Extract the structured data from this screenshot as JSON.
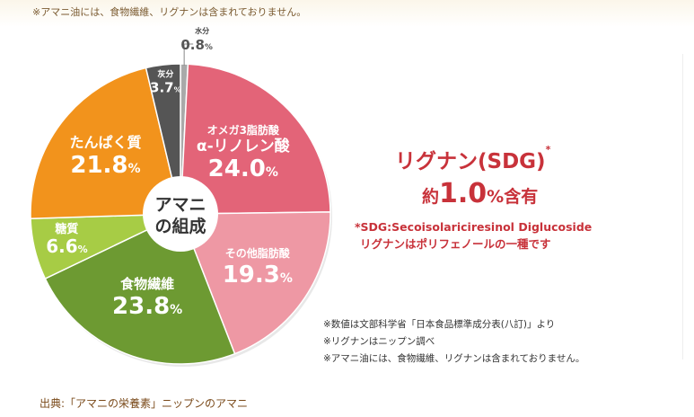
{
  "header": {
    "top_note": "※アマニ油には、食物繊維、リグナンは含まれておりません。"
  },
  "chart_data": {
    "type": "pie",
    "title": "アマニの組成",
    "center_label": [
      "アマニ",
      "の組成"
    ],
    "slices": [
      {
        "label": "水分",
        "sublabel": "",
        "value": 0.8,
        "display": "0.8",
        "color": "#a9a9a9"
      },
      {
        "label": "オメガ3脂肪酸",
        "sublabel": "α-リノレン酸",
        "value": 24.0,
        "display": "24.0",
        "color": "#e36478"
      },
      {
        "label": "その他脂肪酸",
        "sublabel": "",
        "value": 19.3,
        "display": "19.3",
        "color": "#ee98a4"
      },
      {
        "label": "食物繊維",
        "sublabel": "",
        "value": 23.8,
        "display": "23.8",
        "color": "#6d9a32"
      },
      {
        "label": "糖質",
        "sublabel": "",
        "value": 6.6,
        "display": "6.6",
        "color": "#a7cc45"
      },
      {
        "label": "たんぱく質",
        "sublabel": "",
        "value": 21.8,
        "display": "21.8",
        "color": "#f2931c"
      },
      {
        "label": "灰分",
        "sublabel": "",
        "value": 3.7,
        "display": "3.7",
        "color": "#555555"
      }
    ],
    "unit": "%"
  },
  "lignan": {
    "title": "リグナン(SDG)",
    "title_mark": "*",
    "prefix": "約",
    "amount": "1.0",
    "suffix": "%含有",
    "def_line1": "*SDG:Secoisolariciresinol Diglucoside",
    "def_line2": "リグナンはポリフェノールの一種です"
  },
  "notes": [
    "※数値は文部科学省「日本食品標準成分表(八訂)」より",
    "※リグナンはニップン調べ",
    "※アマニ油には、食物繊維、リグナンは含まれておりません。"
  ],
  "source": "出典:「アマニの栄養素」ニップンのアマニ"
}
